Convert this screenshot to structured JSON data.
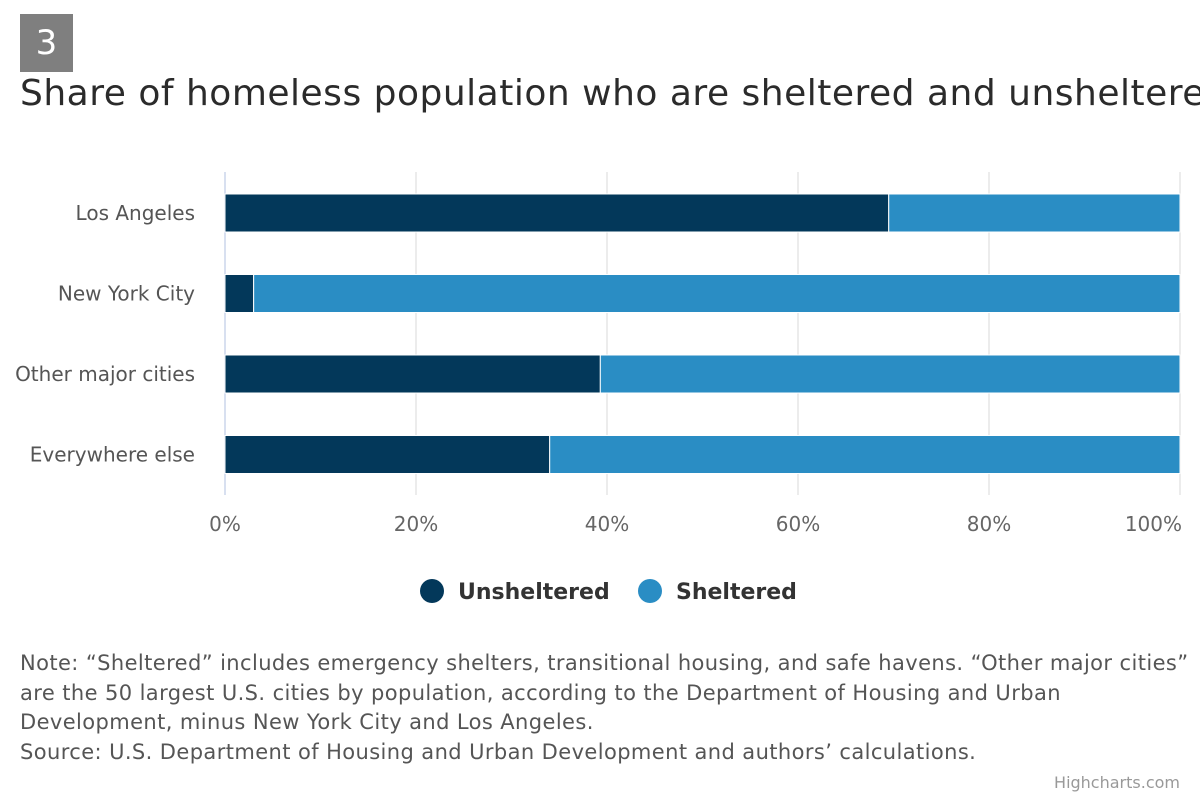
{
  "badge": "3",
  "title": "Share of homeless population who are sheltered and unsheltered",
  "chart_data": {
    "type": "bar",
    "orientation": "horizontal",
    "stacking": "percent",
    "categories": [
      "Los Angeles",
      "New York City",
      "Other major cities",
      "Everywhere else"
    ],
    "series": [
      {
        "name": "Unsheltered",
        "color": "#03385a",
        "values": [
          69.5,
          3.0,
          39.3,
          34.0
        ]
      },
      {
        "name": "Sheltered",
        "color": "#2a8dc4",
        "values": [
          30.5,
          97.0,
          60.7,
          66.0
        ]
      }
    ],
    "xlim": [
      0,
      100
    ],
    "tick_labels": [
      "0%",
      "20%",
      "40%",
      "60%",
      "80%",
      "100%"
    ],
    "grid": true,
    "legend_position": "bottom-center"
  },
  "note": {
    "lines": [
      "Note: “Sheltered” includes emergency shelters, transitional housing, and safe havens. “Other major cities”",
      "are the 50 largest U.S. cities by population, according to the Department of Housing and Urban",
      "Development, minus New York City and Los Angeles.",
      "Source: U.S. Department of Housing and Urban Development and authors’ calculations."
    ]
  },
  "credits": "Highcharts.com"
}
